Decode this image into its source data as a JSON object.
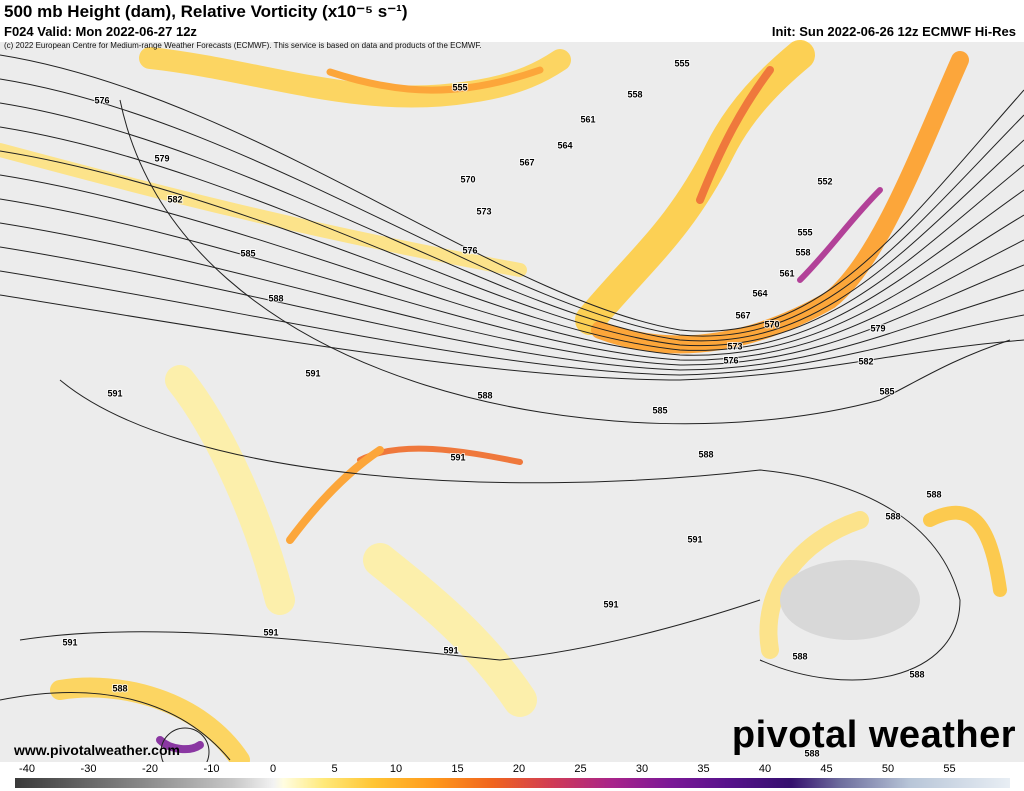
{
  "header": {
    "title": "500 mb Height (dam), Relative Vorticity (x10⁻⁵ s⁻¹)",
    "valid": "F024 Valid: Mon 2022-06-27 12z",
    "init": "Init: Sun 2022-06-26 12z ECMWF Hi-Res",
    "copyright": "(c) 2022 European Centre for Medium-range Weather Forecasts (ECMWF). This service is based on data and products of the ECMWF."
  },
  "map": {
    "contour_labels": [
      "555",
      "555",
      "558",
      "561",
      "564",
      "567",
      "570",
      "573",
      "576",
      "579",
      "582",
      "585",
      "576",
      "588",
      "591",
      "591",
      "588",
      "585",
      "591",
      "588",
      "552",
      "555",
      "558",
      "561",
      "564",
      "567",
      "570",
      "573",
      "576",
      "579",
      "582",
      "585",
      "588",
      "588",
      "591",
      "591",
      "591",
      "591",
      "591",
      "588",
      "588",
      "588",
      "588"
    ]
  },
  "footer": {
    "website": "www.pivotalweather.com",
    "brand": "pivotal weather"
  },
  "colorbar": {
    "ticks": [
      "-40",
      "-30",
      "-20",
      "-10",
      "0",
      "5",
      "10",
      "15",
      "20",
      "25",
      "30",
      "35",
      "40",
      "45",
      "50",
      "55"
    ]
  }
}
